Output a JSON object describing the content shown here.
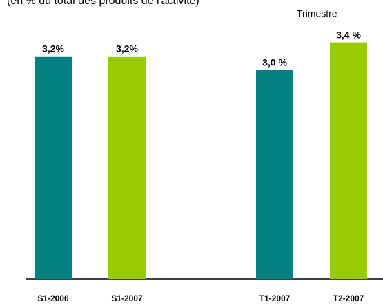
{
  "chart_data": {
    "type": "bar",
    "subtitle": "(en % du total des produits de l'activité)",
    "annotation": "Trimestre",
    "categories": [
      "S1-2006",
      "S1-2007",
      "T1-2007",
      "T2-2007"
    ],
    "values": [
      3.2,
      3.2,
      3.0,
      3.4
    ],
    "value_labels": [
      "3,2%",
      "3,2%",
      "3,0 %",
      "3,4 %"
    ],
    "colors": [
      "#008080",
      "#99cc00",
      "#008080",
      "#99cc00"
    ]
  }
}
